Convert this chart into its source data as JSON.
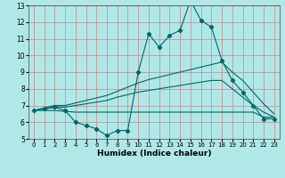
{
  "xlabel": "Humidex (Indice chaleur)",
  "bg_color": "#b0e8e8",
  "grid_color_h": "#d08080",
  "grid_color_v": "#d08080",
  "line_color": "#006666",
  "xlim": [
    -0.5,
    23.5
  ],
  "ylim": [
    5,
    13
  ],
  "x": [
    0,
    1,
    2,
    3,
    4,
    5,
    6,
    7,
    8,
    9,
    10,
    11,
    12,
    13,
    14,
    15,
    16,
    17,
    18,
    19,
    20,
    21,
    22,
    23
  ],
  "y_main": [
    6.7,
    6.8,
    6.9,
    6.7,
    6.0,
    5.8,
    5.6,
    5.2,
    5.5,
    5.5,
    9.0,
    11.3,
    10.5,
    11.2,
    11.5,
    13.3,
    12.1,
    11.7,
    9.7,
    8.5,
    7.8,
    7.0,
    6.2,
    6.2
  ],
  "y_upper": [
    6.7,
    6.85,
    7.0,
    7.0,
    7.15,
    7.3,
    7.45,
    7.6,
    7.85,
    8.1,
    8.35,
    8.55,
    8.7,
    8.85,
    9.0,
    9.15,
    9.3,
    9.45,
    9.6,
    9.0,
    8.5,
    7.8,
    7.1,
    6.5
  ],
  "y_mid": [
    6.7,
    6.8,
    6.9,
    6.9,
    7.0,
    7.1,
    7.2,
    7.3,
    7.5,
    7.65,
    7.8,
    7.9,
    8.0,
    8.1,
    8.2,
    8.3,
    8.4,
    8.5,
    8.5,
    8.0,
    7.5,
    7.0,
    6.6,
    6.3
  ],
  "y_lower": [
    6.7,
    6.7,
    6.7,
    6.65,
    6.6,
    6.6,
    6.6,
    6.6,
    6.6,
    6.6,
    6.6,
    6.6,
    6.6,
    6.6,
    6.6,
    6.6,
    6.6,
    6.6,
    6.6,
    6.6,
    6.6,
    6.6,
    6.3,
    6.3
  ],
  "yticks": [
    5,
    6,
    7,
    8,
    9,
    10,
    11,
    12,
    13
  ],
  "xticks": [
    0,
    1,
    2,
    3,
    4,
    5,
    6,
    7,
    8,
    9,
    10,
    11,
    12,
    13,
    14,
    15,
    16,
    17,
    18,
    19,
    20,
    21,
    22,
    23
  ],
  "tick_fontsize": 5.5,
  "xlabel_fontsize": 6.5,
  "lw": 0.8,
  "marker_size": 2.2
}
